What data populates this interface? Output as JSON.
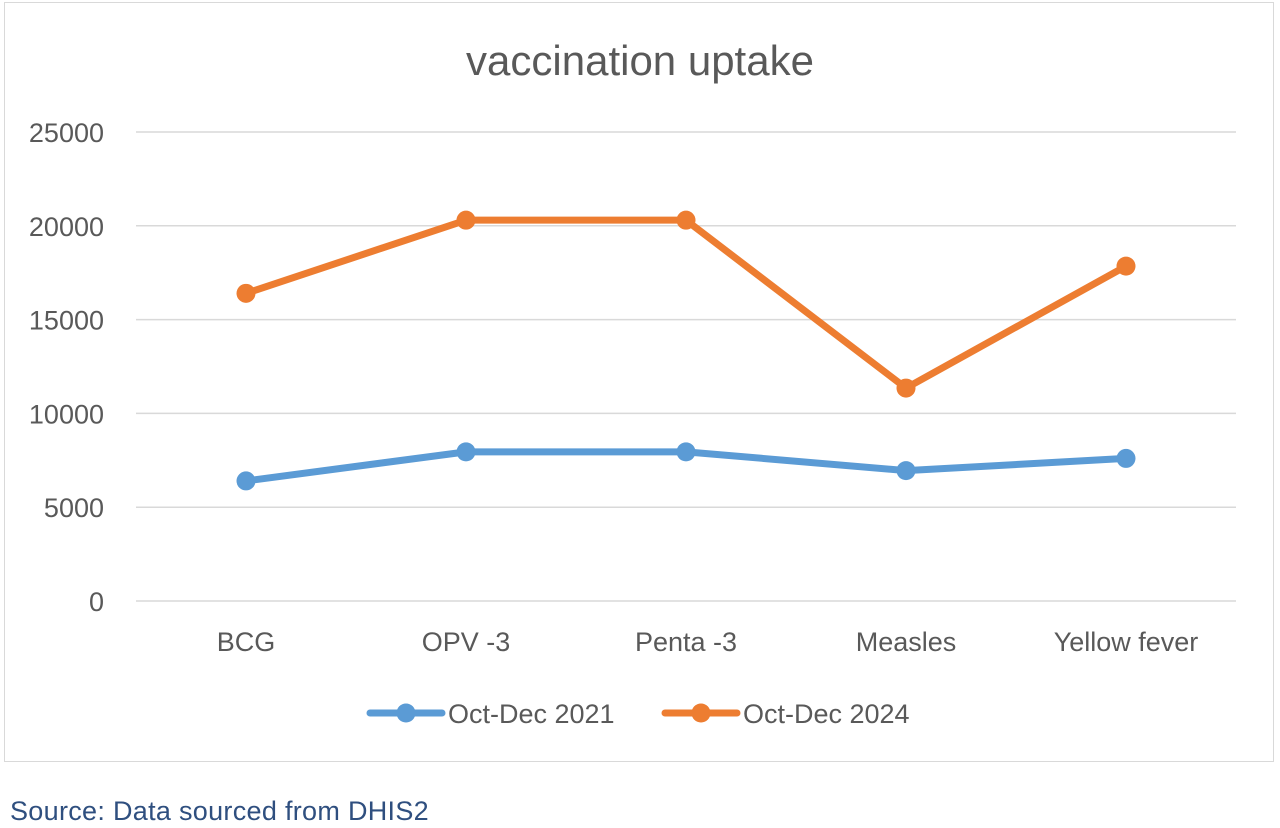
{
  "chart_data": {
    "type": "line",
    "title": "vaccination uptake",
    "xlabel": "",
    "ylabel": "",
    "categories": [
      "BCG",
      "OPV -3",
      "Penta -3",
      "Measles",
      "Yellow fever"
    ],
    "series": [
      {
        "name": "Oct-Dec 2021",
        "color": "#5b9bd5",
        "values": [
          6400,
          7950,
          7950,
          6950,
          7600
        ]
      },
      {
        "name": "Oct-Dec 2024",
        "color": "#ed7d31",
        "values": [
          16400,
          20300,
          20300,
          11350,
          17850
        ]
      }
    ],
    "ylim": [
      0,
      25000
    ],
    "yticks": [
      "0",
      "5000",
      "10000",
      "15000",
      "20000",
      "25000"
    ],
    "grid": true,
    "legend_position": "bottom"
  },
  "footer": {
    "source": "Source: Data sourced from DHIS2"
  },
  "colors": {
    "gridline": "#d9d9d9",
    "axis_text": "#595959",
    "source_text": "#2f4f7f"
  }
}
